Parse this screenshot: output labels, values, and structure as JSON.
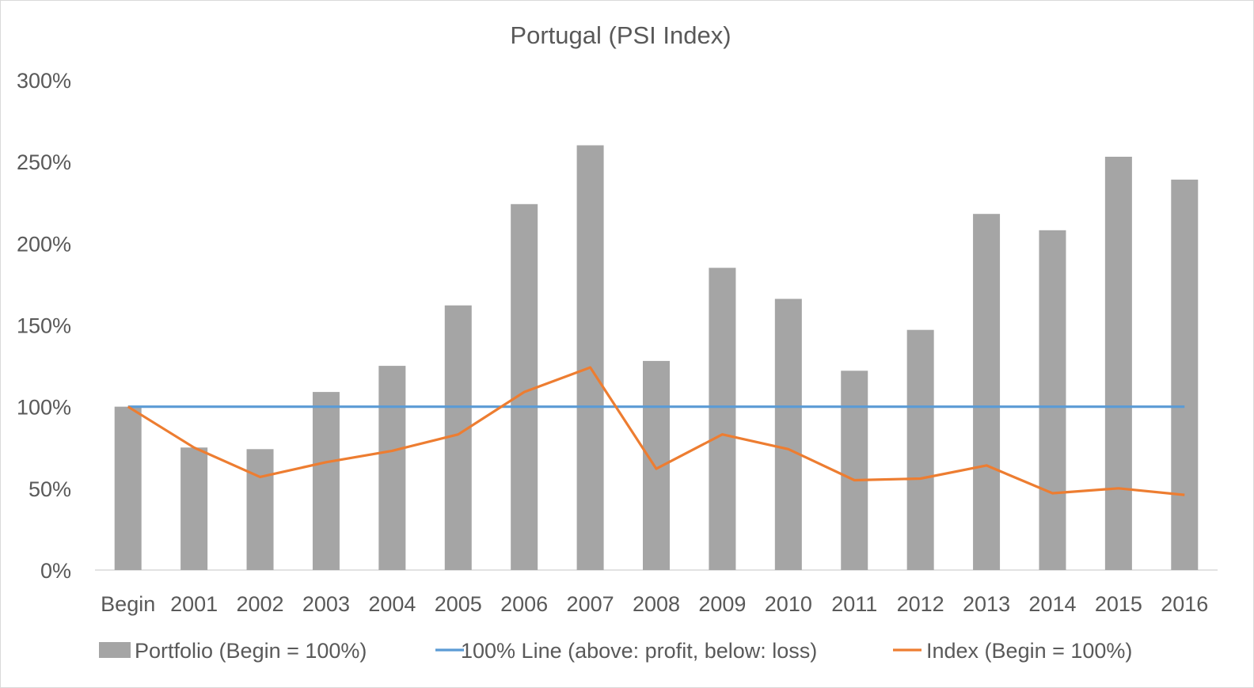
{
  "chart_data": {
    "type": "bar",
    "title": "Portugal (PSI Index)",
    "xlabel": "",
    "ylabel": "",
    "categories": [
      "Begin",
      "2001",
      "2002",
      "2003",
      "2004",
      "2005",
      "2006",
      "2007",
      "2008",
      "2009",
      "2010",
      "2011",
      "2012",
      "2013",
      "2014",
      "2015",
      "2016"
    ],
    "series": [
      {
        "name": "Portfolio (Begin = 100%)",
        "kind": "bar",
        "color": "#a5a5a5",
        "values": [
          100,
          75,
          74,
          109,
          125,
          162,
          224,
          260,
          128,
          185,
          166,
          122,
          147,
          218,
          208,
          253,
          239
        ]
      },
      {
        "name": "100% Line (above: profit, below: loss)",
        "kind": "line",
        "color": "#5b9bd5",
        "values": [
          100,
          100,
          100,
          100,
          100,
          100,
          100,
          100,
          100,
          100,
          100,
          100,
          100,
          100,
          100,
          100,
          100
        ]
      },
      {
        "name": "Index (Begin = 100%)",
        "kind": "line",
        "color": "#ed7d31",
        "values": [
          100,
          75,
          57,
          66,
          73,
          83,
          109,
          124,
          62,
          83,
          74,
          55,
          56,
          64,
          47,
          50,
          46
        ]
      }
    ],
    "ylim": [
      0,
      300
    ],
    "yticks": [
      0,
      50,
      100,
      150,
      200,
      250,
      300
    ],
    "ytick_labels": [
      "0%",
      "50%",
      "100%",
      "150%",
      "200%",
      "250%",
      "300%"
    ],
    "grid": false,
    "legend": "bottom"
  }
}
